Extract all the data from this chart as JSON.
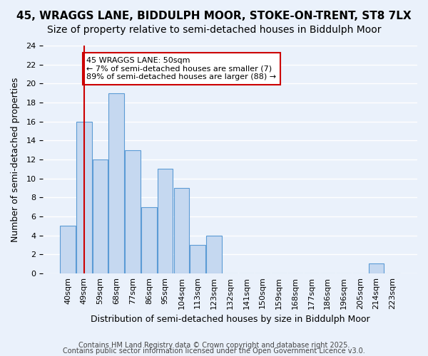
{
  "title_line1": "45, WRAGGS LANE, BIDDULPH MOOR, STOKE-ON-TRENT, ST8 7LX",
  "title_line2": "Size of property relative to semi-detached houses in Biddulph Moor",
  "xlabel": "Distribution of semi-detached houses by size in Biddulph Moor",
  "ylabel": "Number of semi-detached properties",
  "footer_line1": "Contains HM Land Registry data © Crown copyright and database right 2025.",
  "footer_line2": "Contains public sector information licensed under the Open Government Licence v3.0.",
  "bin_labels": [
    "40sqm",
    "49sqm",
    "59sqm",
    "68sqm",
    "77sqm",
    "86sqm",
    "95sqm",
    "104sqm",
    "113sqm",
    "123sqm",
    "132sqm",
    "141sqm",
    "150sqm",
    "159sqm",
    "168sqm",
    "177sqm",
    "186sqm",
    "196sqm",
    "205sqm",
    "214sqm",
    "223sqm"
  ],
  "bar_values": [
    5,
    16,
    12,
    19,
    13,
    7,
    11,
    9,
    3,
    4,
    0,
    0,
    0,
    0,
    0,
    0,
    0,
    0,
    0,
    1,
    0
  ],
  "bar_color": "#c5d8f0",
  "bar_edge_color": "#5b9bd5",
  "highlight_bar_index": 1,
  "highlight_line_color": "#cc0000",
  "annotation_title": "45 WRAGGS LANE: 50sqm",
  "annotation_line1": "← 7% of semi-detached houses are smaller (7)",
  "annotation_line2": "89% of semi-detached houses are larger (88) →",
  "annotation_box_color": "#ffffff",
  "annotation_box_edge": "#cc0000",
  "ylim": [
    0,
    24
  ],
  "yticks": [
    0,
    2,
    4,
    6,
    8,
    10,
    12,
    14,
    16,
    18,
    20,
    22,
    24
  ],
  "background_color": "#eaf1fb",
  "plot_background": "#eaf1fb",
  "grid_color": "#ffffff",
  "title_fontsize": 11,
  "subtitle_fontsize": 10,
  "axis_label_fontsize": 9,
  "tick_fontsize": 8,
  "footer_fontsize": 7
}
